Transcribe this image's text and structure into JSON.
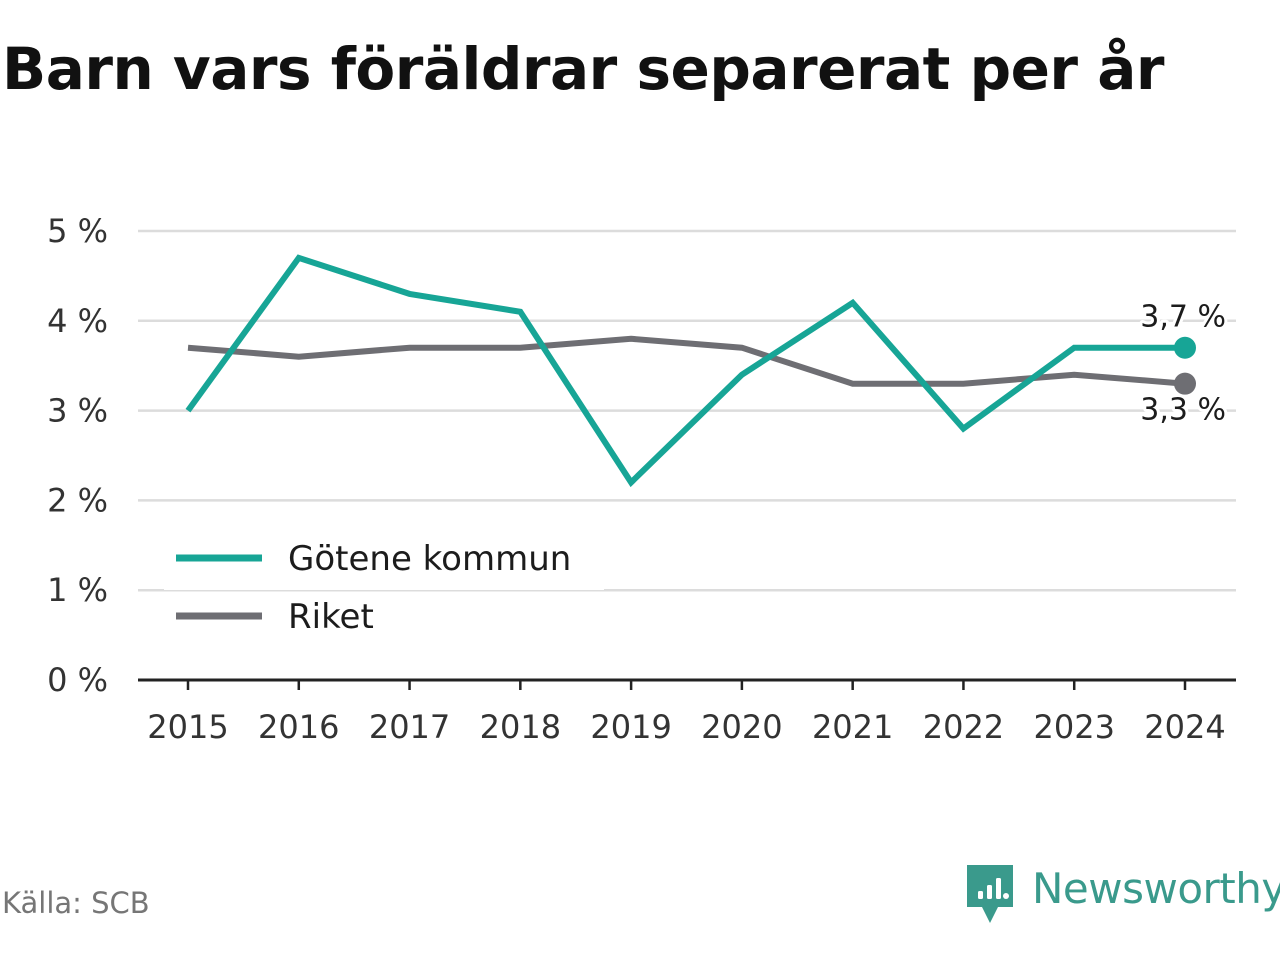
{
  "title": "Barn vars föräldrar separerat per år",
  "source": "Källa: SCB",
  "brand": {
    "name": "Newsworthy",
    "icon": "newsworthy-logo-icon",
    "color": "#3a9a8c"
  },
  "chart_data": {
    "type": "line",
    "title": "Barn vars föräldrar separerat per år",
    "x": [
      "2015",
      "2016",
      "2017",
      "2018",
      "2019",
      "2020",
      "2021",
      "2022",
      "2023",
      "2024"
    ],
    "ylim": [
      0,
      5
    ],
    "yticks": [
      0,
      1,
      2,
      3,
      4,
      5
    ],
    "ytick_labels": [
      "0 %",
      "1 %",
      "2 %",
      "3 %",
      "4 %",
      "5 %"
    ],
    "y_unit": "%",
    "grid": true,
    "legend": {
      "placement": "bottom-left"
    },
    "series": [
      {
        "name": "Götene kommun",
        "color": "#17a596",
        "values": [
          3.0,
          4.7,
          4.3,
          4.1,
          2.2,
          3.4,
          4.2,
          2.8,
          3.7,
          3.7
        ],
        "end_label": "3,7 %"
      },
      {
        "name": "Riket",
        "color": "#6e6e73",
        "values": [
          3.7,
          3.6,
          3.7,
          3.7,
          3.8,
          3.7,
          3.3,
          3.3,
          3.4,
          3.3
        ],
        "end_label": "3,3 %"
      }
    ]
  }
}
